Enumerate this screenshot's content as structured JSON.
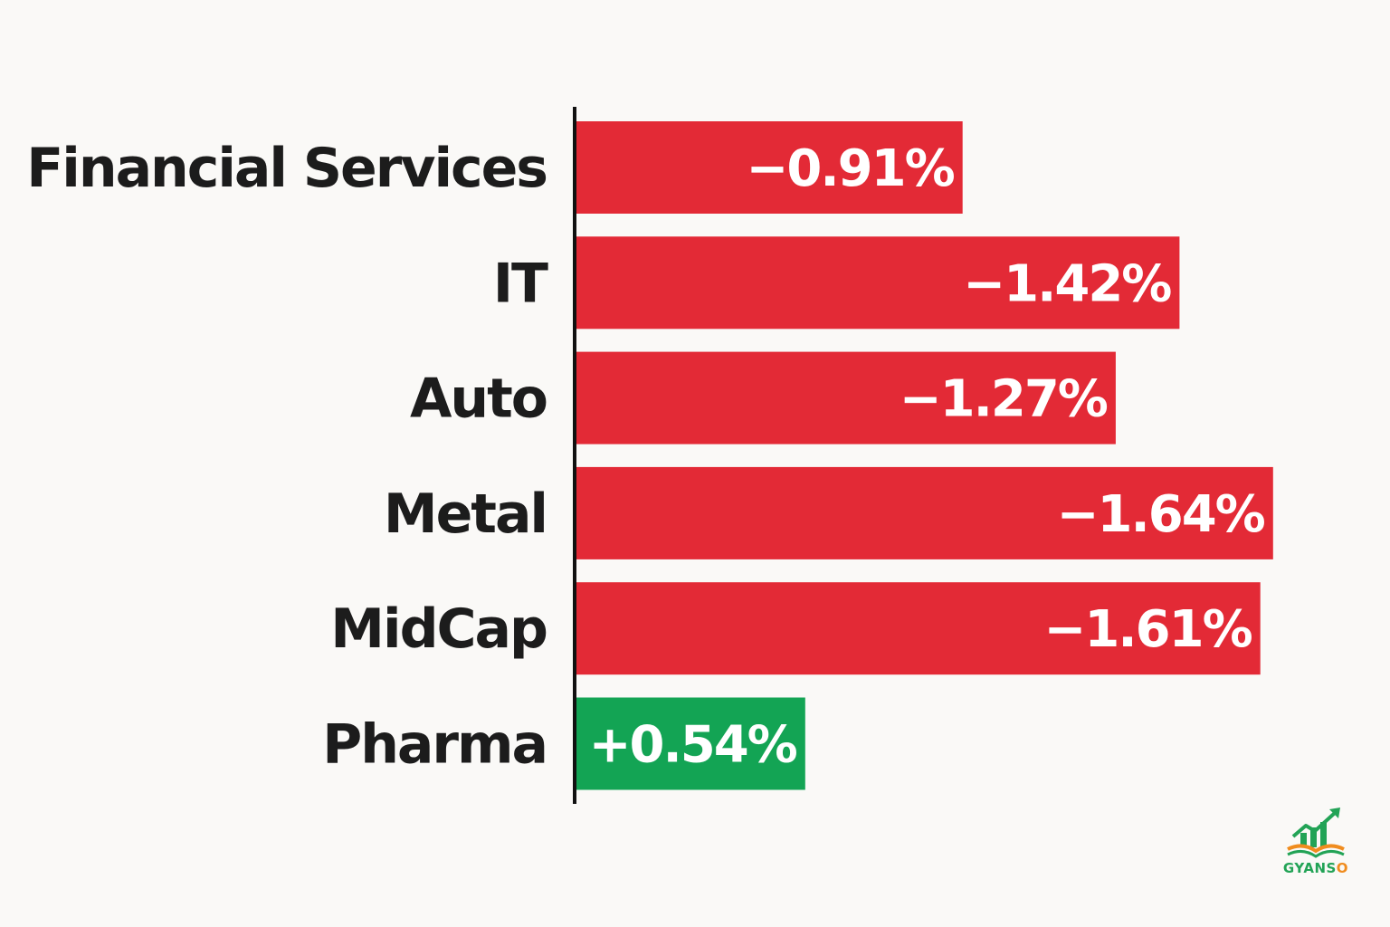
{
  "chart_data": {
    "type": "bar",
    "orientation": "horizontal",
    "categories": [
      "Financial Services",
      "IT",
      "Auto",
      "Metal",
      "MidCap",
      "Pharma"
    ],
    "values": [
      -0.91,
      -1.42,
      -1.27,
      -1.64,
      -1.61,
      0.54
    ],
    "value_labels": [
      "−0.91%",
      "−1.42%",
      "−1.27%",
      "−1.64%",
      "−1.61%",
      "+0.54%"
    ],
    "colors": {
      "negative": "#e32a36",
      "positive": "#13a454",
      "axis": "#111111"
    },
    "title": "",
    "xlabel": "",
    "ylabel": "",
    "grid": false,
    "legend": "none"
  },
  "logo": {
    "text_main": "GYANS",
    "text_accent": "O",
    "icon": "growth-chart-book-icon"
  }
}
